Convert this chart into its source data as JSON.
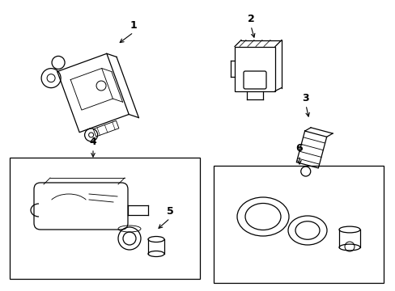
{
  "background_color": "#ffffff",
  "line_color": "#000000",
  "label_color": "#000000",
  "figsize": [
    4.89,
    3.6
  ],
  "dpi": 100,
  "lw": 0.9
}
